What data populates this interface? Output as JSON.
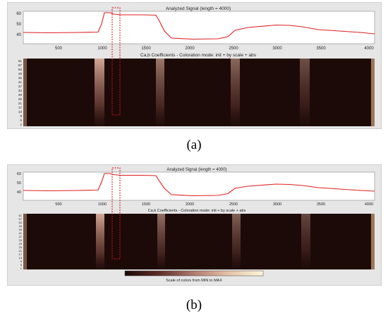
{
  "figure_a": {
    "signal_title": "Analyzed Signal (length = 4000)",
    "coeff_title": "Ca,b Coefficients - Coloration mode: init + by scale + abs",
    "signal_yticks": [
      "40",
      "50",
      "60"
    ],
    "signal_xticks": [
      "500",
      "1000",
      "1500",
      "2000",
      "2500",
      "3000",
      "3500",
      "4000"
    ],
    "scale_ticks": [
      "61",
      "57",
      "53",
      "49",
      "45",
      "41",
      "37",
      "33",
      "29",
      "25",
      "21",
      "17",
      "13",
      "9",
      "5",
      "1"
    ],
    "caption": "(a)"
  },
  "figure_b": {
    "signal_title": "Analyzed Signal (length = 4000)",
    "coeff_title": "Ca,b Coefficients - Coloration mode: init + by scale + abs",
    "signal_yticks": [
      "40",
      "50",
      "60"
    ],
    "signal_xticks": [
      "500",
      "1000",
      "1500",
      "2000",
      "2500",
      "3000",
      "3500",
      "4000"
    ],
    "scale_ticks": [
      "61",
      "57",
      "53",
      "49",
      "45",
      "41",
      "37",
      "33",
      "29",
      "25",
      "21",
      "17",
      "13",
      "9",
      "5",
      "1"
    ],
    "colorbar_label": "Scale of colors from MIN to MAX",
    "caption": "(b)"
  },
  "colors": {
    "signal_line": "#e02020",
    "highlight_box": "#d01010",
    "scalogram_dark": "#1c0a08",
    "scalogram_bright": "#f4d2b8",
    "panel_bg": "#e6e6e6"
  }
}
